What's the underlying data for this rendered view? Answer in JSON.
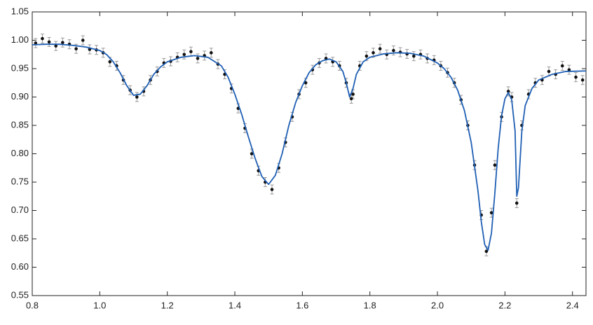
{
  "chart_data": {
    "type": "scatter",
    "xlim": [
      0.8,
      2.44
    ],
    "ylim": [
      0.55,
      1.05
    ],
    "xticks": [
      0.8,
      {
        "value": 1,
        "label": "1.0"
      },
      1.2,
      1.4,
      1.6,
      1.8,
      {
        "value": 2,
        "label": "2.0"
      },
      2.2,
      2.4
    ],
    "yticks": [
      1.05,
      {
        "value": 1,
        "label": "1.00"
      },
      0.95,
      {
        "value": 0.9,
        "label": "0.90"
      },
      0.85,
      {
        "value": 0.8,
        "label": "0.80"
      },
      0.75,
      {
        "value": 0.7,
        "label": "0.70"
      },
      0.65,
      {
        "value": 0.6,
        "label": "0.60"
      },
      0.55
    ],
    "series": [
      {
        "type": "scatter",
        "color": "#111111",
        "error_color": "#9a9a9a",
        "error": 0.008,
        "x": [
          0.81,
          0.83,
          0.85,
          0.87,
          0.89,
          0.91,
          0.93,
          0.95,
          0.97,
          0.99,
          1.01,
          1.03,
          1.05,
          1.07,
          1.09,
          1.11,
          1.13,
          1.15,
          1.17,
          1.19,
          1.21,
          1.23,
          1.25,
          1.27,
          1.29,
          1.31,
          1.33,
          1.35,
          1.37,
          1.39,
          1.41,
          1.43,
          1.45,
          1.47,
          1.49,
          1.51,
          1.53,
          1.55,
          1.57,
          1.59,
          1.61,
          1.63,
          1.65,
          1.67,
          1.69,
          1.71,
          1.73,
          1.745,
          1.75,
          1.77,
          1.79,
          1.81,
          1.83,
          1.85,
          1.87,
          1.89,
          1.91,
          1.93,
          1.95,
          1.97,
          1.99,
          2.01,
          2.03,
          2.05,
          2.07,
          2.09,
          2.11,
          2.13,
          2.145,
          2.16,
          2.17,
          2.19,
          2.21,
          2.22,
          2.235,
          2.25,
          2.27,
          2.29,
          2.31,
          2.33,
          2.35,
          2.37,
          2.39,
          2.41,
          2.43
        ],
        "y": [
          0.995,
          1.003,
          0.997,
          0.99,
          0.996,
          0.993,
          0.985,
          1.0,
          0.984,
          0.983,
          0.978,
          0.962,
          0.955,
          0.93,
          0.912,
          0.9,
          0.91,
          0.93,
          0.945,
          0.96,
          0.963,
          0.97,
          0.975,
          0.98,
          0.968,
          0.973,
          0.978,
          0.958,
          0.94,
          0.915,
          0.88,
          0.845,
          0.8,
          0.77,
          0.75,
          0.737,
          0.775,
          0.82,
          0.865,
          0.905,
          0.925,
          0.948,
          0.96,
          0.968,
          0.962,
          0.955,
          0.925,
          0.897,
          0.905,
          0.955,
          0.972,
          0.978,
          0.985,
          0.975,
          0.982,
          0.979,
          0.976,
          0.972,
          0.975,
          0.968,
          0.965,
          0.955,
          0.943,
          0.925,
          0.895,
          0.85,
          0.78,
          0.692,
          0.628,
          0.696,
          0.78,
          0.865,
          0.91,
          0.9,
          0.713,
          0.85,
          0.905,
          0.925,
          0.93,
          0.945,
          0.94,
          0.955,
          0.948,
          0.935,
          0.93
        ]
      },
      {
        "type": "line",
        "color": "#1f5fb4",
        "x": [
          0.8,
          0.84,
          0.88,
          0.92,
          0.96,
          1.0,
          1.02,
          1.04,
          1.06,
          1.08,
          1.1,
          1.12,
          1.14,
          1.16,
          1.18,
          1.2,
          1.24,
          1.28,
          1.32,
          1.36,
          1.38,
          1.4,
          1.42,
          1.44,
          1.46,
          1.48,
          1.5,
          1.52,
          1.54,
          1.56,
          1.58,
          1.6,
          1.62,
          1.64,
          1.66,
          1.68,
          1.7,
          1.72,
          1.73,
          1.74,
          1.75,
          1.76,
          1.78,
          1.8,
          1.84,
          1.88,
          1.92,
          1.96,
          2.0,
          2.02,
          2.04,
          2.06,
          2.08,
          2.1,
          2.12,
          2.13,
          2.14,
          2.15,
          2.16,
          2.17,
          2.18,
          2.19,
          2.2,
          2.21,
          2.22,
          2.23,
          2.235,
          2.24,
          2.25,
          2.26,
          2.28,
          2.3,
          2.34,
          2.38,
          2.44
        ],
        "y": [
          0.992,
          0.993,
          0.993,
          0.991,
          0.988,
          0.982,
          0.975,
          0.962,
          0.943,
          0.92,
          0.903,
          0.905,
          0.92,
          0.94,
          0.953,
          0.962,
          0.97,
          0.973,
          0.97,
          0.955,
          0.935,
          0.905,
          0.87,
          0.83,
          0.792,
          0.76,
          0.746,
          0.762,
          0.8,
          0.85,
          0.89,
          0.92,
          0.943,
          0.957,
          0.964,
          0.967,
          0.962,
          0.945,
          0.925,
          0.9,
          0.915,
          0.94,
          0.962,
          0.97,
          0.976,
          0.978,
          0.977,
          0.972,
          0.96,
          0.95,
          0.935,
          0.912,
          0.876,
          0.82,
          0.735,
          0.68,
          0.64,
          0.63,
          0.66,
          0.73,
          0.81,
          0.867,
          0.897,
          0.908,
          0.895,
          0.84,
          0.725,
          0.74,
          0.84,
          0.885,
          0.915,
          0.93,
          0.94,
          0.945,
          0.946
        ]
      }
    ]
  }
}
